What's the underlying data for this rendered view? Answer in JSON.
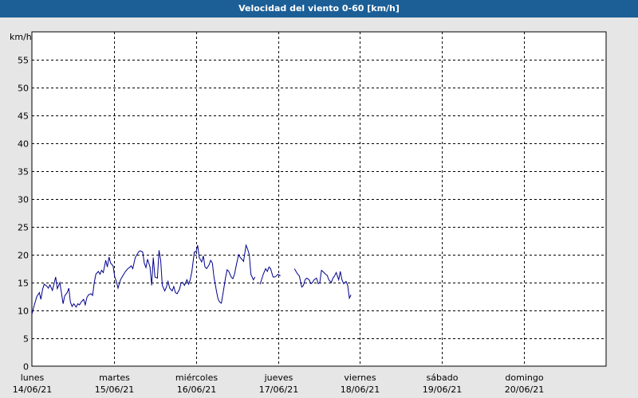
{
  "title": "Velocidad del viento 0-60 [km/h]",
  "chart_data": {
    "type": "line",
    "title": "Velocidad del viento 0-60 [km/h]",
    "ylabel": "km/h",
    "ylim": [
      0,
      60
    ],
    "yticks": [
      0,
      5,
      10,
      15,
      20,
      25,
      30,
      35,
      40,
      45,
      50,
      55
    ],
    "xlim": [
      0,
      7
    ],
    "grid": true,
    "colors": {
      "line": "#00008b",
      "plot_bg": "#ffffff",
      "grid": "#000000"
    },
    "x_ticks": [
      {
        "day": "lunes",
        "date": "14/06/21",
        "x": 0
      },
      {
        "day": "martes",
        "date": "15/06/21",
        "x": 1
      },
      {
        "day": "miércoles",
        "date": "16/06/21",
        "x": 2
      },
      {
        "day": "jueves",
        "date": "17/06/21",
        "x": 3
      },
      {
        "day": "viernes",
        "date": "18/06/21",
        "x": 4
      },
      {
        "day": "sábado",
        "date": "19/06/21",
        "x": 5
      },
      {
        "day": "domingo",
        "date": "20/06/21",
        "x": 6
      }
    ],
    "series": [
      {
        "segments": [
          [
            [
              0.0,
              9.3
            ],
            [
              0.02,
              10.5
            ],
            [
              0.04,
              11.5
            ],
            [
              0.06,
              12.5
            ],
            [
              0.09,
              13.2
            ],
            [
              0.11,
              12.0
            ],
            [
              0.13,
              13.8
            ],
            [
              0.15,
              14.7
            ],
            [
              0.18,
              14.4
            ],
            [
              0.2,
              14.0
            ],
            [
              0.22,
              14.6
            ],
            [
              0.25,
              13.6
            ],
            [
              0.27,
              14.8
            ],
            [
              0.29,
              16.0
            ],
            [
              0.31,
              13.9
            ],
            [
              0.34,
              15.0
            ],
            [
              0.36,
              13.2
            ],
            [
              0.38,
              11.2
            ],
            [
              0.4,
              12.6
            ],
            [
              0.43,
              13.2
            ],
            [
              0.45,
              14.0
            ],
            [
              0.47,
              11.5
            ],
            [
              0.49,
              10.7
            ],
            [
              0.51,
              11.2
            ],
            [
              0.54,
              10.6
            ],
            [
              0.56,
              11.2
            ],
            [
              0.58,
              11.0
            ],
            [
              0.6,
              11.5
            ],
            [
              0.63,
              12.0
            ],
            [
              0.65,
              11.0
            ],
            [
              0.67,
              12.3
            ],
            [
              0.69,
              12.8
            ],
            [
              0.72,
              13.0
            ],
            [
              0.74,
              12.7
            ],
            [
              0.76,
              15.0
            ],
            [
              0.78,
              16.5
            ],
            [
              0.81,
              17.0
            ],
            [
              0.83,
              16.5
            ],
            [
              0.85,
              17.2
            ],
            [
              0.87,
              16.8
            ],
            [
              0.9,
              19.0
            ],
            [
              0.92,
              17.8
            ],
            [
              0.94,
              19.6
            ],
            [
              0.96,
              18.5
            ],
            [
              0.99,
              18.0
            ],
            [
              1.01,
              16.0
            ],
            [
              1.03,
              15.2
            ],
            [
              1.05,
              14.0
            ],
            [
              1.08,
              15.5
            ],
            [
              1.1,
              16.0
            ],
            [
              1.12,
              16.5
            ],
            [
              1.14,
              17.0
            ],
            [
              1.17,
              17.5
            ],
            [
              1.19,
              17.7
            ],
            [
              1.21,
              18.0
            ],
            [
              1.23,
              17.5
            ],
            [
              1.26,
              19.5
            ],
            [
              1.28,
              20.0
            ],
            [
              1.3,
              20.5
            ],
            [
              1.32,
              20.7
            ],
            [
              1.35,
              20.5
            ],
            [
              1.37,
              18.5
            ],
            [
              1.39,
              17.7
            ],
            [
              1.41,
              19.2
            ],
            [
              1.44,
              17.8
            ],
            [
              1.46,
              14.5
            ],
            [
              1.48,
              19.5
            ],
            [
              1.5,
              16.0
            ],
            [
              1.53,
              15.8
            ],
            [
              1.55,
              20.8
            ],
            [
              1.57,
              19.0
            ],
            [
              1.59,
              14.5
            ],
            [
              1.62,
              13.5
            ],
            [
              1.64,
              14.2
            ],
            [
              1.66,
              15.2
            ],
            [
              1.68,
              14.0
            ],
            [
              1.71,
              13.5
            ],
            [
              1.73,
              14.3
            ],
            [
              1.75,
              13.2
            ],
            [
              1.77,
              13.0
            ],
            [
              1.8,
              13.8
            ],
            [
              1.82,
              15.0
            ],
            [
              1.84,
              15.0
            ],
            [
              1.86,
              14.5
            ],
            [
              1.89,
              15.5
            ],
            [
              1.91,
              14.7
            ],
            [
              1.93,
              15.5
            ],
            [
              1.95,
              17.0
            ],
            [
              1.98,
              20.5
            ],
            [
              2.0,
              20.5
            ],
            [
              2.02,
              21.7
            ],
            [
              2.04,
              19.5
            ],
            [
              2.07,
              18.7
            ],
            [
              2.09,
              19.8
            ],
            [
              2.11,
              17.8
            ],
            [
              2.13,
              17.5
            ],
            [
              2.16,
              18.2
            ],
            [
              2.18,
              19.0
            ],
            [
              2.2,
              18.5
            ],
            [
              2.22,
              16.0
            ],
            [
              2.25,
              13.5
            ],
            [
              2.27,
              12.0
            ],
            [
              2.29,
              11.5
            ],
            [
              2.31,
              11.3
            ],
            [
              2.34,
              14.0
            ],
            [
              2.36,
              15.8
            ],
            [
              2.38,
              17.3
            ],
            [
              2.4,
              17.0
            ],
            [
              2.43,
              16.0
            ],
            [
              2.45,
              15.7
            ],
            [
              2.47,
              16.5
            ],
            [
              2.49,
              18.0
            ],
            [
              2.52,
              20.0
            ],
            [
              2.54,
              19.5
            ],
            [
              2.56,
              19.2
            ],
            [
              2.58,
              18.8
            ],
            [
              2.61,
              21.7
            ],
            [
              2.63,
              21.0
            ],
            [
              2.65,
              20.0
            ],
            [
              2.67,
              16.5
            ],
            [
              2.7,
              15.5
            ],
            [
              2.72,
              16.0
            ]
          ],
          [
            [
              2.78,
              14.7
            ],
            [
              2.8,
              15.5
            ],
            [
              2.82,
              16.5
            ],
            [
              2.85,
              17.5
            ],
            [
              2.87,
              17.0
            ],
            [
              2.89,
              17.8
            ],
            [
              2.91,
              17.5
            ],
            [
              2.94,
              16.0
            ],
            [
              2.96,
              16.0
            ],
            [
              2.98,
              16.2
            ],
            [
              3.0,
              16.5
            ],
            [
              3.03,
              16.2
            ]
          ],
          [
            [
              3.2,
              17.5
            ],
            [
              3.22,
              17.0
            ],
            [
              3.24,
              16.5
            ],
            [
              3.26,
              16.2
            ],
            [
              3.29,
              14.2
            ],
            [
              3.31,
              14.5
            ],
            [
              3.33,
              15.5
            ],
            [
              3.35,
              15.8
            ],
            [
              3.38,
              15.5
            ],
            [
              3.4,
              14.8
            ],
            [
              3.42,
              15.0
            ],
            [
              3.44,
              15.5
            ],
            [
              3.47,
              15.8
            ],
            [
              3.49,
              14.8
            ],
            [
              3.51,
              15.0
            ],
            [
              3.53,
              17.2
            ],
            [
              3.56,
              16.8
            ],
            [
              3.58,
              16.5
            ],
            [
              3.6,
              16.3
            ],
            [
              3.62,
              15.5
            ],
            [
              3.65,
              15.0
            ],
            [
              3.67,
              15.8
            ],
            [
              3.69,
              16.2
            ],
            [
              3.71,
              16.8
            ],
            [
              3.74,
              15.5
            ],
            [
              3.76,
              17.0
            ],
            [
              3.78,
              15.5
            ],
            [
              3.8,
              14.8
            ],
            [
              3.83,
              15.2
            ],
            [
              3.85,
              14.5
            ],
            [
              3.87,
              12.2
            ],
            [
              3.89,
              12.8
            ]
          ]
        ]
      }
    ]
  }
}
